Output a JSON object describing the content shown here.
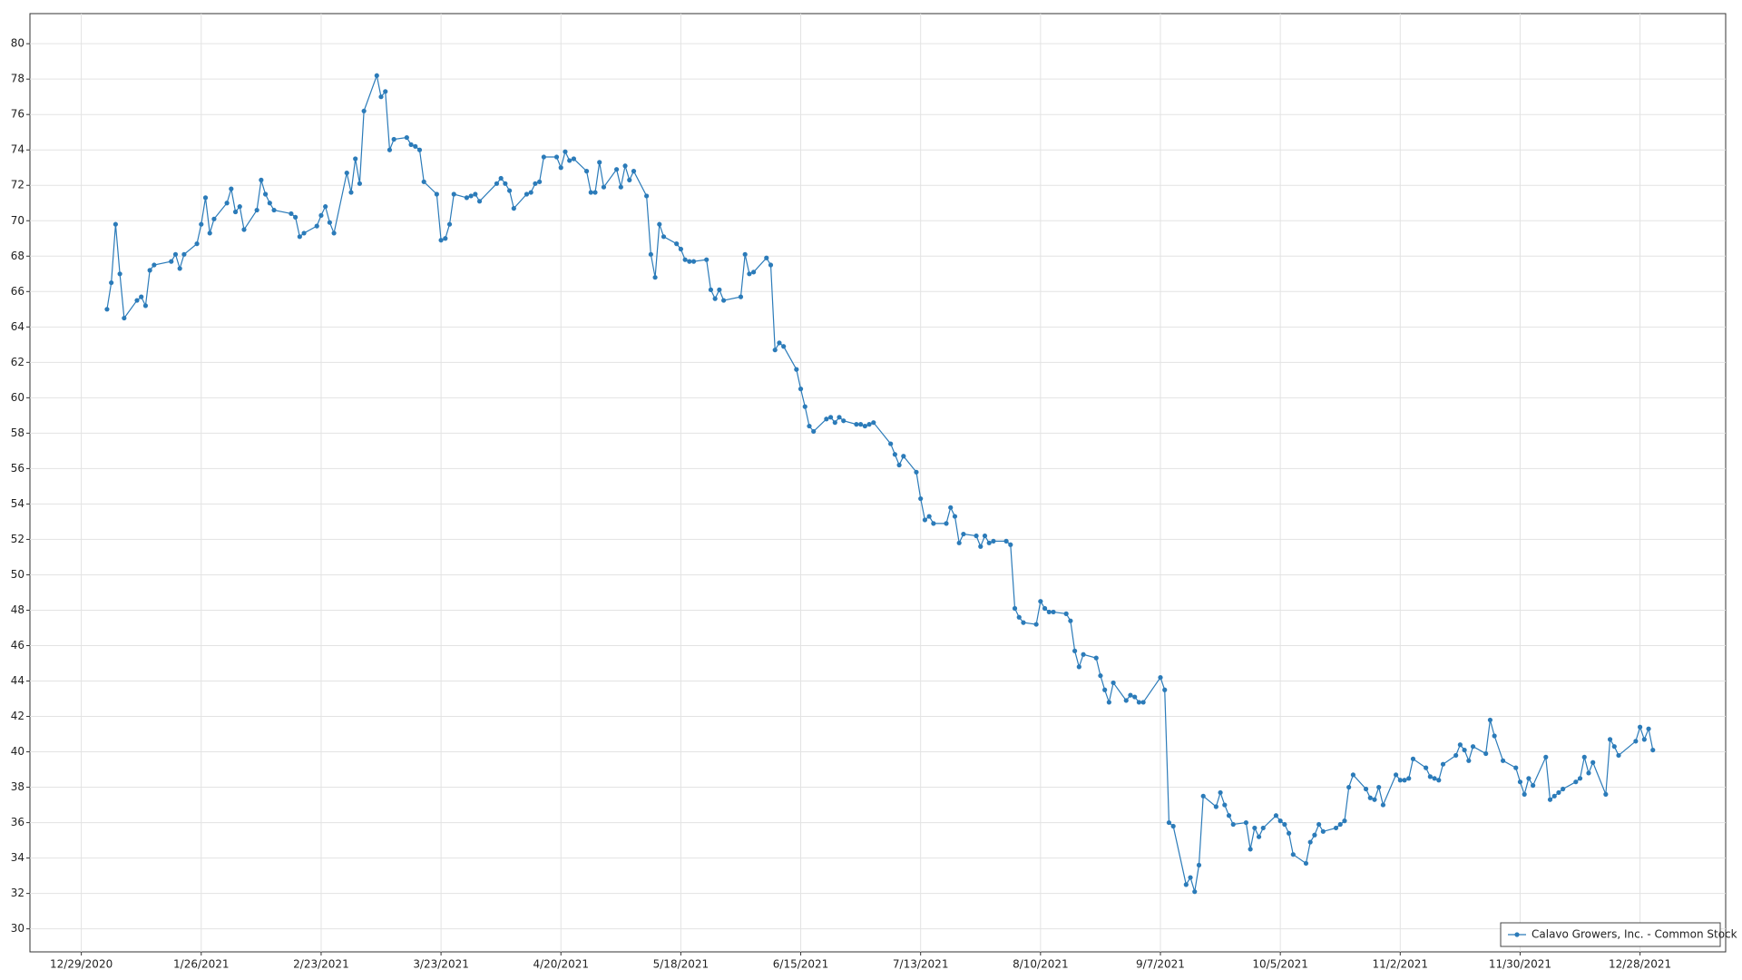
{
  "chart_data": {
    "type": "line",
    "x": [
      "2021-01-04",
      "2021-01-05",
      "2021-01-06",
      "2021-01-07",
      "2021-01-08",
      "2021-01-11",
      "2021-01-12",
      "2021-01-13",
      "2021-01-14",
      "2021-01-15",
      "2021-01-19",
      "2021-01-20",
      "2021-01-21",
      "2021-01-22",
      "2021-01-25",
      "2021-01-26",
      "2021-01-27",
      "2021-01-28",
      "2021-01-29",
      "2021-02-01",
      "2021-02-02",
      "2021-02-03",
      "2021-02-04",
      "2021-02-05",
      "2021-02-08",
      "2021-02-09",
      "2021-02-10",
      "2021-02-11",
      "2021-02-12",
      "2021-02-16",
      "2021-02-17",
      "2021-02-18",
      "2021-02-19",
      "2021-02-22",
      "2021-02-23",
      "2021-02-24",
      "2021-02-25",
      "2021-02-26",
      "2021-03-01",
      "2021-03-02",
      "2021-03-03",
      "2021-03-04",
      "2021-03-05",
      "2021-03-08",
      "2021-03-09",
      "2021-03-10",
      "2021-03-11",
      "2021-03-12",
      "2021-03-15",
      "2021-03-16",
      "2021-03-17",
      "2021-03-18",
      "2021-03-19",
      "2021-03-22",
      "2021-03-23",
      "2021-03-24",
      "2021-03-25",
      "2021-03-26",
      "2021-03-29",
      "2021-03-30",
      "2021-03-31",
      "2021-04-01",
      "2021-04-05",
      "2021-04-06",
      "2021-04-07",
      "2021-04-08",
      "2021-04-09",
      "2021-04-12",
      "2021-04-13",
      "2021-04-14",
      "2021-04-15",
      "2021-04-16",
      "2021-04-19",
      "2021-04-20",
      "2021-04-21",
      "2021-04-22",
      "2021-04-23",
      "2021-04-26",
      "2021-04-27",
      "2021-04-28",
      "2021-04-29",
      "2021-04-30",
      "2021-05-03",
      "2021-05-04",
      "2021-05-05",
      "2021-05-06",
      "2021-05-07",
      "2021-05-10",
      "2021-05-11",
      "2021-05-12",
      "2021-05-13",
      "2021-05-14",
      "2021-05-17",
      "2021-05-18",
      "2021-05-19",
      "2021-05-20",
      "2021-05-21",
      "2021-05-24",
      "2021-05-25",
      "2021-05-26",
      "2021-05-27",
      "2021-05-28",
      "2021-06-01",
      "2021-06-02",
      "2021-06-03",
      "2021-06-04",
      "2021-06-07",
      "2021-06-08",
      "2021-06-09",
      "2021-06-10",
      "2021-06-11",
      "2021-06-14",
      "2021-06-15",
      "2021-06-16",
      "2021-06-17",
      "2021-06-18",
      "2021-06-21",
      "2021-06-22",
      "2021-06-23",
      "2021-06-24",
      "2021-06-25",
      "2021-06-28",
      "2021-06-29",
      "2021-06-30",
      "2021-07-01",
      "2021-07-02",
      "2021-07-06",
      "2021-07-07",
      "2021-07-08",
      "2021-07-09",
      "2021-07-12",
      "2021-07-13",
      "2021-07-14",
      "2021-07-15",
      "2021-07-16",
      "2021-07-19",
      "2021-07-20",
      "2021-07-21",
      "2021-07-22",
      "2021-07-23",
      "2021-07-26",
      "2021-07-27",
      "2021-07-28",
      "2021-07-29",
      "2021-07-30",
      "2021-08-02",
      "2021-08-03",
      "2021-08-04",
      "2021-08-05",
      "2021-08-06",
      "2021-08-09",
      "2021-08-10",
      "2021-08-11",
      "2021-08-12",
      "2021-08-13",
      "2021-08-16",
      "2021-08-17",
      "2021-08-18",
      "2021-08-19",
      "2021-08-20",
      "2021-08-23",
      "2021-08-24",
      "2021-08-25",
      "2021-08-26",
      "2021-08-27",
      "2021-08-30",
      "2021-08-31",
      "2021-09-01",
      "2021-09-02",
      "2021-09-03",
      "2021-09-07",
      "2021-09-08",
      "2021-09-09",
      "2021-09-10",
      "2021-09-13",
      "2021-09-14",
      "2021-09-15",
      "2021-09-16",
      "2021-09-17",
      "2021-09-20",
      "2021-09-21",
      "2021-09-22",
      "2021-09-23",
      "2021-09-24",
      "2021-09-27",
      "2021-09-28",
      "2021-09-29",
      "2021-09-30",
      "2021-10-01",
      "2021-10-04",
      "2021-10-05",
      "2021-10-06",
      "2021-10-07",
      "2021-10-08",
      "2021-10-11",
      "2021-10-12",
      "2021-10-13",
      "2021-10-14",
      "2021-10-15",
      "2021-10-18",
      "2021-10-19",
      "2021-10-20",
      "2021-10-21",
      "2021-10-22",
      "2021-10-25",
      "2021-10-26",
      "2021-10-27",
      "2021-10-28",
      "2021-10-29",
      "2021-11-01",
      "2021-11-02",
      "2021-11-03",
      "2021-11-04",
      "2021-11-05",
      "2021-11-08",
      "2021-11-09",
      "2021-11-10",
      "2021-11-11",
      "2021-11-12",
      "2021-11-15",
      "2021-11-16",
      "2021-11-17",
      "2021-11-18",
      "2021-11-19",
      "2021-11-22",
      "2021-11-23",
      "2021-11-24",
      "2021-11-26",
      "2021-11-29",
      "2021-11-30",
      "2021-12-01",
      "2021-12-02",
      "2021-12-03",
      "2021-12-06",
      "2021-12-07",
      "2021-12-08",
      "2021-12-09",
      "2021-12-10",
      "2021-12-13",
      "2021-12-14",
      "2021-12-15",
      "2021-12-16",
      "2021-12-17",
      "2021-12-20",
      "2021-12-21",
      "2021-12-22",
      "2021-12-23",
      "2021-12-27",
      "2021-12-28",
      "2021-12-29",
      "2021-12-30",
      "2021-12-31"
    ],
    "series": [
      {
        "name": "Calavo Growers, Inc. - Common Stock",
        "color": "#2b7bb9",
        "values": [
          65.0,
          66.5,
          69.8,
          67.0,
          64.5,
          65.5,
          65.7,
          65.2,
          67.2,
          67.5,
          67.7,
          68.1,
          67.3,
          68.1,
          68.7,
          69.8,
          71.3,
          69.3,
          70.1,
          71.0,
          71.8,
          70.5,
          70.8,
          69.5,
          70.6,
          72.3,
          71.5,
          71.0,
          70.6,
          70.4,
          70.2,
          69.1,
          69.3,
          69.7,
          70.3,
          70.8,
          69.9,
          69.3,
          72.7,
          71.6,
          73.5,
          72.1,
          76.2,
          78.2,
          77.0,
          77.3,
          74.0,
          74.6,
          74.7,
          74.3,
          74.2,
          74.0,
          72.2,
          71.5,
          68.9,
          69.0,
          69.8,
          71.5,
          71.3,
          71.4,
          71.5,
          71.1,
          72.1,
          72.4,
          72.1,
          71.7,
          70.7,
          71.5,
          71.6,
          72.1,
          72.2,
          73.6,
          73.6,
          73.0,
          73.9,
          73.4,
          73.5,
          72.8,
          71.6,
          71.6,
          73.3,
          71.9,
          72.9,
          71.9,
          73.1,
          72.3,
          72.8,
          71.4,
          68.1,
          66.8,
          69.8,
          69.1,
          68.7,
          68.4,
          67.8,
          67.7,
          67.7,
          67.8,
          66.1,
          65.6,
          66.1,
          65.5,
          65.7,
          68.1,
          67.0,
          67.1,
          67.9,
          67.5,
          62.7,
          63.1,
          62.9,
          61.6,
          60.5,
          59.5,
          58.4,
          58.1,
          58.8,
          58.9,
          58.6,
          58.9,
          58.7,
          58.5,
          58.5,
          58.4,
          58.5,
          58.6,
          57.4,
          56.8,
          56.2,
          56.7,
          55.8,
          54.3,
          53.1,
          53.3,
          52.9,
          52.9,
          53.8,
          53.3,
          51.8,
          52.3,
          52.2,
          51.6,
          52.2,
          51.8,
          51.9,
          51.9,
          51.7,
          48.1,
          47.6,
          47.3,
          47.2,
          48.5,
          48.1,
          47.9,
          47.9,
          47.8,
          47.4,
          45.7,
          44.8,
          45.5,
          45.3,
          44.3,
          43.5,
          42.8,
          43.9,
          42.9,
          43.2,
          43.1,
          42.8,
          42.8,
          44.2,
          43.5,
          36.0,
          35.8,
          32.5,
          32.9,
          32.1,
          33.6,
          37.5,
          36.9,
          37.7,
          37.0,
          36.4,
          35.9,
          36.0,
          34.5,
          35.7,
          35.2,
          35.7,
          36.4,
          36.1,
          35.9,
          35.4,
          34.2,
          33.7,
          34.9,
          35.3,
          35.9,
          35.5,
          35.7,
          35.9,
          36.1,
          38.0,
          38.7,
          37.9,
          37.4,
          37.3,
          38.0,
          37.0,
          38.7,
          38.4,
          38.4,
          38.5,
          39.6,
          39.1,
          38.6,
          38.5,
          38.4,
          39.3,
          39.8,
          40.4,
          40.1,
          39.5,
          40.3,
          39.9,
          41.8,
          40.9,
          39.5,
          39.1,
          38.3,
          37.6,
          38.5,
          38.1,
          39.7,
          37.3,
          37.5,
          37.7,
          37.9,
          38.3,
          38.5,
          39.7,
          38.8,
          39.4,
          37.6,
          40.7,
          40.3,
          39.8,
          40.6,
          41.4,
          40.7,
          41.3,
          40.1
        ]
      }
    ],
    "xlim": [
      "2020-12-17",
      "2022-01-17"
    ],
    "xticks": [
      {
        "value": "2020-12-29",
        "label": "12/29/2020"
      },
      {
        "value": "2021-01-26",
        "label": "1/26/2021"
      },
      {
        "value": "2021-02-23",
        "label": "2/23/2021"
      },
      {
        "value": "2021-03-23",
        "label": "3/23/2021"
      },
      {
        "value": "2021-04-20",
        "label": "4/20/2021"
      },
      {
        "value": "2021-05-18",
        "label": "5/18/2021"
      },
      {
        "value": "2021-06-15",
        "label": "6/15/2021"
      },
      {
        "value": "2021-07-13",
        "label": "7/13/2021"
      },
      {
        "value": "2021-08-10",
        "label": "8/10/2021"
      },
      {
        "value": "2021-09-07",
        "label": "9/7/2021"
      },
      {
        "value": "2021-10-05",
        "label": "10/5/2021"
      },
      {
        "value": "2021-11-02",
        "label": "11/2/2021"
      },
      {
        "value": "2021-11-30",
        "label": "11/30/2021"
      },
      {
        "value": "2021-12-28",
        "label": "12/28/2021"
      }
    ],
    "ylim": [
      28.7,
      81.7
    ],
    "yticks": [
      30,
      32,
      34,
      36,
      38,
      40,
      42,
      44,
      46,
      48,
      50,
      52,
      54,
      56,
      58,
      60,
      62,
      64,
      66,
      68,
      70,
      72,
      74,
      76,
      78,
      80
    ],
    "grid": true,
    "legend": "lower right"
  }
}
